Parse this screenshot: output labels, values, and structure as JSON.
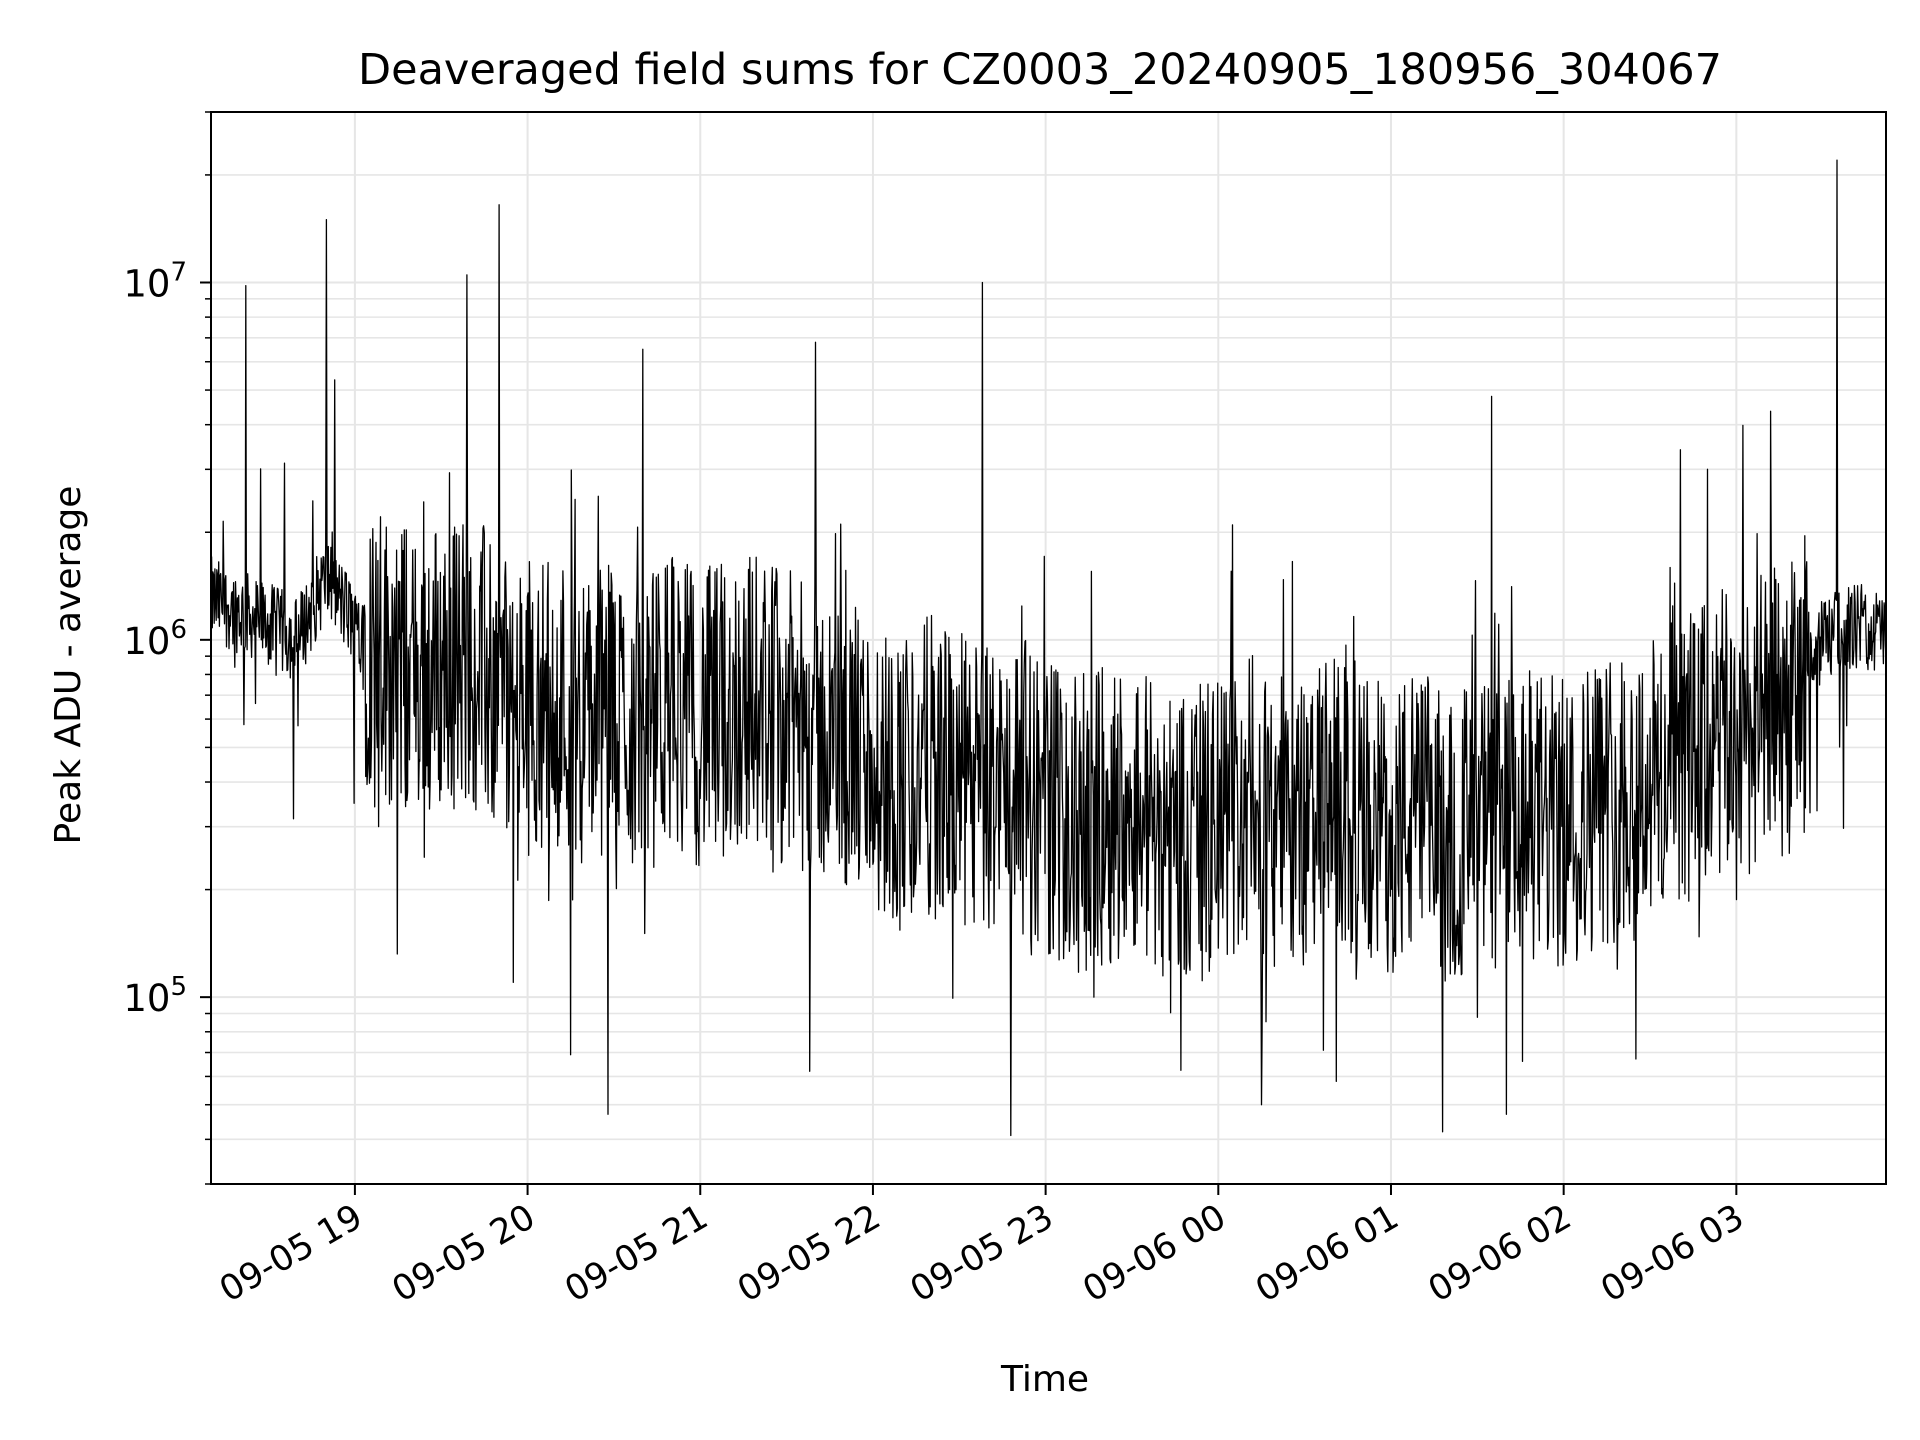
{
  "chart_data": {
    "type": "line",
    "title": "Deaveraged field sums for CZ0003_20240905_180956_304067",
    "xlabel": "Time",
    "ylabel": "Peak ADU - average",
    "xscale": "time",
    "yscale": "log",
    "xlim": [
      "2024-09-05 18:10",
      "2024-09-06 03:52"
    ],
    "ylim": [
      30000,
      30000000
    ],
    "grid": true,
    "colors": {
      "line": "#000000",
      "grid": "#e6e6e6",
      "axes": "#000000"
    },
    "x_ticks": [
      {
        "label": "09-05 19",
        "time": "2024-09-05 19:00"
      },
      {
        "label": "09-05 20",
        "time": "2024-09-05 20:00"
      },
      {
        "label": "09-05 21",
        "time": "2024-09-05 21:00"
      },
      {
        "label": "09-05 22",
        "time": "2024-09-05 22:00"
      },
      {
        "label": "09-05 23",
        "time": "2024-09-05 23:00"
      },
      {
        "label": "09-06 00",
        "time": "2024-09-06 00:00"
      },
      {
        "label": "09-06 01",
        "time": "2024-09-06 01:00"
      },
      {
        "label": "09-06 02",
        "time": "2024-09-06 02:00"
      },
      {
        "label": "09-06 03",
        "time": "2024-09-06 03:00"
      }
    ],
    "y_ticks": [
      {
        "base": "10",
        "exp": "5",
        "value": 100000
      },
      {
        "base": "10",
        "exp": "6",
        "value": 1000000
      },
      {
        "base": "10",
        "exp": "7",
        "value": 10000000
      }
    ],
    "series": [
      {
        "x": [
          "2024-09-05 18:10",
          "2024-09-05 18:20",
          "2024-09-05 18:30",
          "2024-09-05 18:40",
          "2024-09-05 18:50",
          "2024-09-05 19:00",
          "2024-09-05 19:10",
          "2024-09-05 19:20",
          "2024-09-05 19:30",
          "2024-09-05 19:40",
          "2024-09-05 19:50",
          "2024-09-05 20:00",
          "2024-09-05 20:10",
          "2024-09-05 20:20",
          "2024-09-05 20:30",
          "2024-09-05 20:40",
          "2024-09-05 20:50",
          "2024-09-05 21:00",
          "2024-09-05 21:10",
          "2024-09-05 21:20",
          "2024-09-05 21:30",
          "2024-09-05 21:40",
          "2024-09-05 21:50",
          "2024-09-05 22:00",
          "2024-09-05 22:10",
          "2024-09-05 22:20",
          "2024-09-05 22:30",
          "2024-09-05 22:40",
          "2024-09-05 22:50",
          "2024-09-05 23:00",
          "2024-09-05 23:10",
          "2024-09-05 23:20",
          "2024-09-05 23:30",
          "2024-09-05 23:40",
          "2024-09-05 23:50",
          "2024-09-06 00:00",
          "2024-09-06 00:10",
          "2024-09-06 00:20",
          "2024-09-06 00:30",
          "2024-09-06 00:40",
          "2024-09-06 00:50",
          "2024-09-06 01:00",
          "2024-09-06 01:10",
          "2024-09-06 01:20",
          "2024-09-06 01:30",
          "2024-09-06 01:40",
          "2024-09-06 01:50",
          "2024-09-06 02:00",
          "2024-09-06 02:10",
          "2024-09-06 02:20",
          "2024-09-06 02:30",
          "2024-09-06 02:40",
          "2024-09-06 02:50",
          "2024-09-06 03:00",
          "2024-09-06 03:10",
          "2024-09-06 03:20",
          "2024-09-06 03:30",
          "2024-09-06 03:40",
          "2024-09-06 03:50"
        ],
        "y": [
          1300000,
          1200000,
          1100000,
          1000000,
          1500000,
          1100000,
          900000,
          800000,
          850000,
          900000,
          700000,
          650000,
          700000,
          600000,
          650000,
          550000,
          700000,
          600000,
          650000,
          700000,
          600000,
          550000,
          500000,
          450000,
          400000,
          450000,
          400000,
          380000,
          400000,
          350000,
          300000,
          320000,
          350000,
          300000,
          280000,
          300000,
          350000,
          320000,
          300000,
          350000,
          300000,
          300000,
          320000,
          280000,
          300000,
          300000,
          320000,
          300000,
          350000,
          380000,
          400000,
          450000,
          500000,
          550000,
          600000,
          650000,
          1000000,
          1100000,
          1050000
        ],
        "peaks": [
          {
            "time": "2024-09-05 18:22",
            "value": 9800000
          },
          {
            "time": "2024-09-05 18:50",
            "value": 15000000
          },
          {
            "time": "2024-09-05 19:39",
            "value": 10500000
          },
          {
            "time": "2024-09-05 19:50",
            "value": 16500000
          },
          {
            "time": "2024-09-05 20:40",
            "value": 6500000
          },
          {
            "time": "2024-09-05 21:40",
            "value": 6800000
          },
          {
            "time": "2024-09-05 22:38",
            "value": 10000000
          },
          {
            "time": "2024-09-06 01:35",
            "value": 4800000
          },
          {
            "time": "2024-09-06 02:50",
            "value": 3000000
          },
          {
            "time": "2024-09-06 03:35",
            "value": 22000000
          }
        ],
        "troughs": [
          {
            "time": "2024-09-05 19:55",
            "value": 110000
          },
          {
            "time": "2024-09-05 20:15",
            "value": 69000
          },
          {
            "time": "2024-09-05 20:28",
            "value": 47000
          },
          {
            "time": "2024-09-05 21:38",
            "value": 62000
          },
          {
            "time": "2024-09-05 22:48",
            "value": 41000
          },
          {
            "time": "2024-09-06 00:15",
            "value": 50000
          },
          {
            "time": "2024-09-06 01:18",
            "value": 42000
          },
          {
            "time": "2024-09-06 01:40",
            "value": 47000
          }
        ]
      }
    ]
  }
}
